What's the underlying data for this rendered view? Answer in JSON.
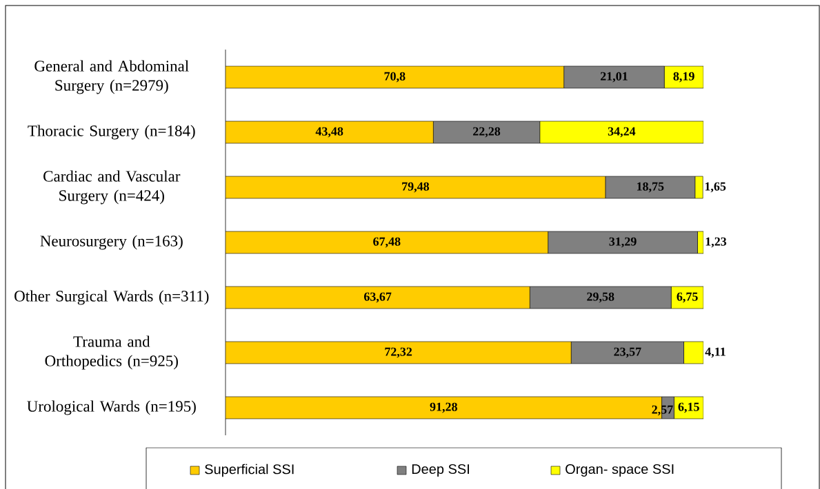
{
  "chart_data": {
    "type": "bar",
    "orientation": "horizontal",
    "stacked": true,
    "legend": "bottom",
    "categories": [
      "General and Abdominal Surgery (n=2979)",
      "Thoracic Surgery (n=184)",
      "Cardiac and Vascular Surgery (n=424)",
      "Neurosurgery (n=163)",
      "Other Surgical Wards (n=311)",
      "Trauma and Orthopedics (n=925)",
      "Urological Wards (n=195)"
    ],
    "series": [
      {
        "name": "Superficial SSI",
        "color": "#ffcc00",
        "values": [
          70.8,
          43.48,
          79.48,
          67.48,
          63.67,
          72.32,
          91.28
        ],
        "value_labels": [
          "70,8",
          "43,48",
          "79,48",
          "67,48",
          "63,67",
          "72,32",
          "91,28"
        ]
      },
      {
        "name": "Deep SSI",
        "color": "#808080",
        "values": [
          21.01,
          22.28,
          18.75,
          31.29,
          29.58,
          23.57,
          2.57
        ],
        "value_labels": [
          "21,01",
          "22,28",
          "18,75",
          "31,29",
          "29,58",
          "23,57",
          "2,57"
        ]
      },
      {
        "name": "Organ- space SSI",
        "color": "#ffff00",
        "values": [
          8.19,
          34.24,
          1.65,
          1.23,
          6.75,
          4.11,
          6.15
        ],
        "value_labels": [
          "8,19",
          "34,24",
          "1,65",
          "1,23",
          "6,75",
          "4,11",
          "6,15"
        ]
      }
    ]
  }
}
